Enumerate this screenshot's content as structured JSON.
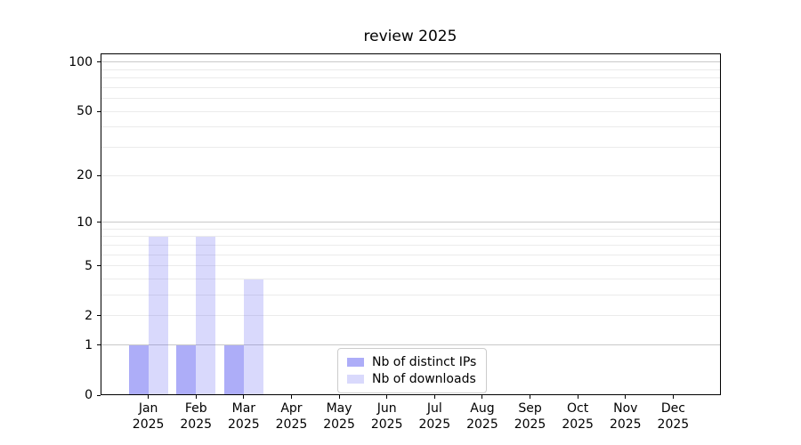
{
  "chart_data": {
    "type": "bar",
    "title": "review 2025",
    "categories": [
      "Jan",
      "Feb",
      "Mar",
      "Apr",
      "May",
      "Jun",
      "Jul",
      "Aug",
      "Sep",
      "Oct",
      "Nov",
      "Dec"
    ],
    "x_year_label": "2025",
    "series": [
      {
        "name": "Nb of distinct IPs",
        "color": "rgba(80,80,240,0.47)",
        "values": [
          1,
          1,
          1,
          0,
          0,
          0,
          0,
          0,
          0,
          0,
          0,
          0
        ]
      },
      {
        "name": "Nb of downloads",
        "color": "rgba(80,80,240,0.22)",
        "values": [
          8,
          8,
          4,
          0,
          0,
          0,
          0,
          0,
          0,
          0,
          0,
          0
        ]
      }
    ],
    "y_scale": "log10(1+y)",
    "ylim": [
      0,
      113
    ],
    "y_tick_labels": [
      0,
      1,
      2,
      5,
      10,
      20,
      50,
      100
    ],
    "y_gridlines_major": [
      1,
      10,
      100
    ],
    "y_gridlines_minor": [
      2,
      3,
      4,
      5,
      6,
      7,
      8,
      9,
      20,
      30,
      40,
      50,
      60,
      70,
      80,
      90
    ],
    "grid": "both, horizontal only",
    "legend_position": "inside bottom-center",
    "colors": {
      "grid_major": "#c9c9c9",
      "grid_minor": "#ebebeb",
      "axis": "#000000",
      "background": "#ffffff"
    }
  }
}
